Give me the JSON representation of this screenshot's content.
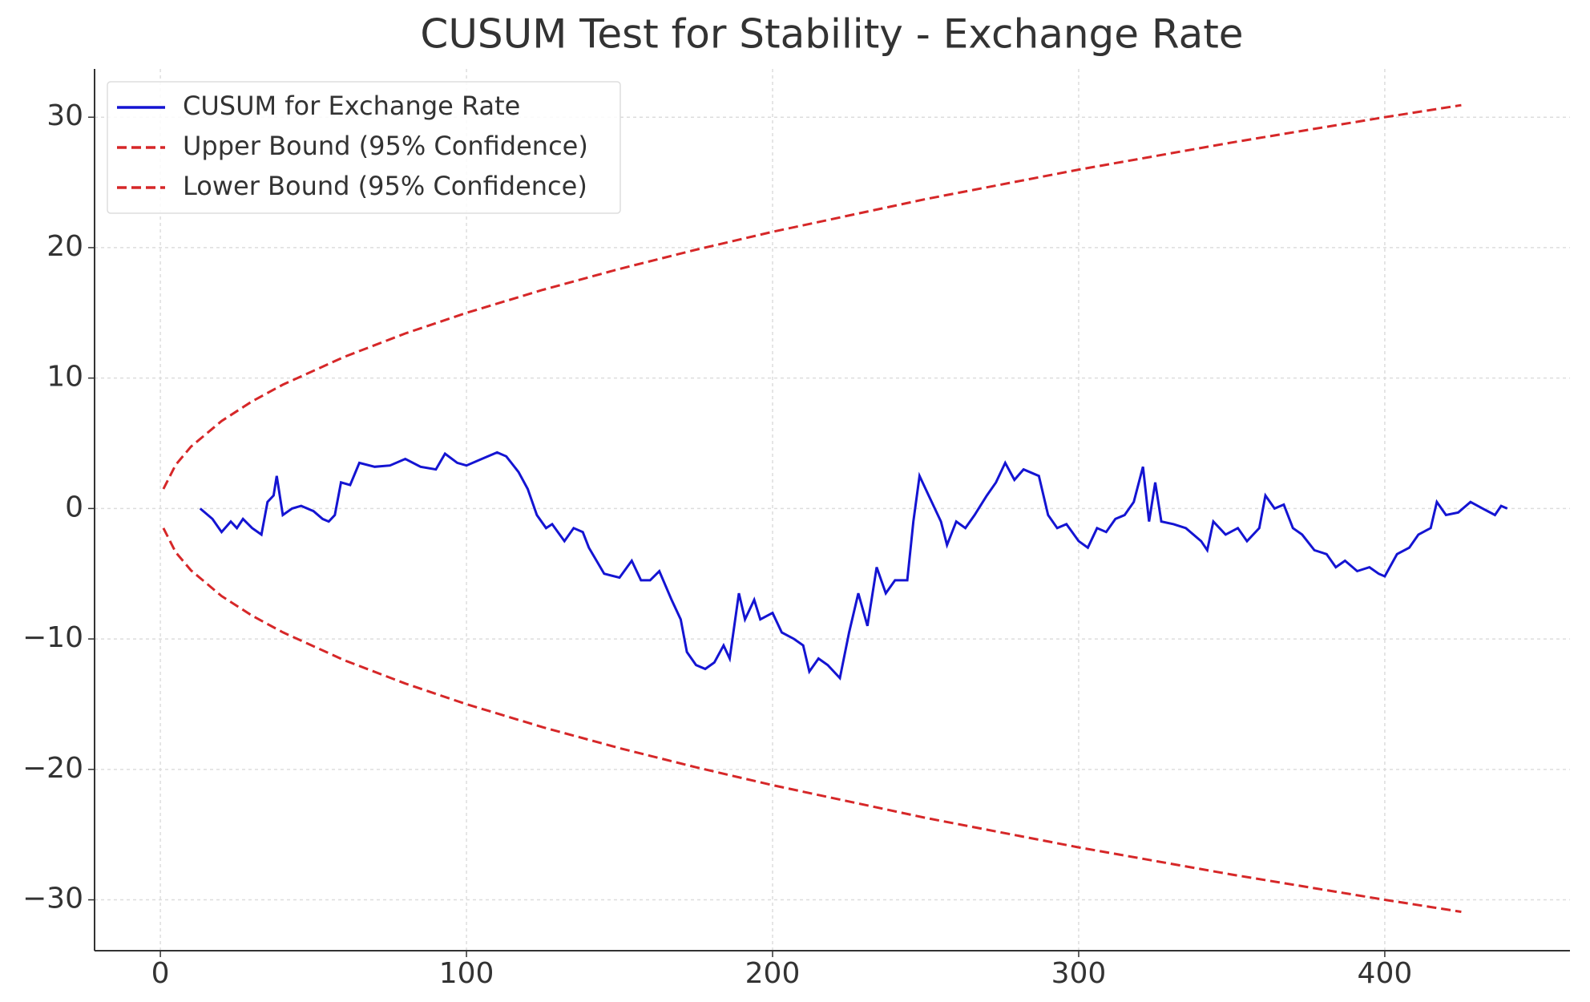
{
  "chart_data": {
    "type": "line",
    "title": "CUSUM Test for Stability - Exchange Rate",
    "xlim": [
      -21.5,
      460.5
    ],
    "ylim": [
      -33.9,
      33.7
    ],
    "xticks": [
      0,
      100,
      200,
      300,
      400
    ],
    "yticks": [
      {
        "value": -30,
        "label": "−30"
      },
      {
        "value": -20,
        "label": "−20"
      },
      {
        "value": -10,
        "label": "−10"
      },
      0,
      10,
      20,
      30
    ],
    "grid": true,
    "legend": "upper left",
    "series": [
      {
        "name": "CUSUM for Exchange Rate",
        "color": "#1414d2",
        "linestyle": "solid",
        "x": [
          13,
          17,
          20,
          23,
          25,
          27,
          30,
          33,
          35,
          37,
          38,
          40,
          43,
          46,
          50,
          53,
          55,
          57,
          59,
          62,
          65,
          70,
          75,
          80,
          85,
          90,
          93,
          97,
          100,
          105,
          110,
          113,
          117,
          120,
          123,
          126,
          128,
          132,
          135,
          138,
          140,
          145,
          150,
          154,
          157,
          160,
          163,
          167,
          170,
          172,
          175,
          178,
          181,
          184,
          186,
          189,
          191,
          194,
          196,
          200,
          203,
          207,
          210,
          212,
          215,
          218,
          222,
          225,
          228,
          231,
          234,
          237,
          240,
          244,
          246,
          248,
          251,
          255,
          257,
          260,
          263,
          266,
          270,
          273,
          276,
          279,
          282,
          287,
          290,
          293,
          296,
          300,
          303,
          306,
          309,
          312,
          315,
          318,
          321,
          323,
          325,
          327,
          331,
          335,
          340,
          342,
          344,
          348,
          352,
          355,
          359,
          361,
          364,
          367,
          370,
          373,
          377,
          381,
          384,
          387,
          391,
          395,
          398,
          400,
          404,
          408,
          411,
          415,
          417,
          420,
          424,
          428,
          432,
          436,
          438,
          440
        ],
        "values": [
          0,
          -0.8,
          -1.8,
          -1,
          -1.5,
          -0.8,
          -1.5,
          -2,
          0.5,
          1,
          2.5,
          -0.5,
          0,
          0.2,
          -0.2,
          -0.8,
          -1,
          -0.5,
          2,
          1.8,
          3.5,
          3.2,
          3.3,
          3.8,
          3.2,
          3.0,
          4.2,
          3.5,
          3.3,
          3.8,
          4.3,
          4.0,
          2.8,
          1.5,
          -0.5,
          -1.5,
          -1.2,
          -2.5,
          -1.5,
          -1.8,
          -3,
          -5,
          -5.3,
          -4,
          -5.5,
          -5.5,
          -4.8,
          -7,
          -8.5,
          -11,
          -12,
          -12.3,
          -11.8,
          -10.5,
          -11.5,
          -6.5,
          -8.5,
          -7,
          -8.5,
          -8,
          -9.5,
          -10,
          -10.5,
          -12.5,
          -11.5,
          -12,
          -13,
          -9.5,
          -6.5,
          -9,
          -4.5,
          -6.5,
          -5.5,
          -5.5,
          -1,
          2.5,
          1,
          -1,
          -2.8,
          -1,
          -1.5,
          -0.5,
          1,
          2,
          3.5,
          2.2,
          3.0,
          2.5,
          -0.5,
          -1.5,
          -1.2,
          -2.5,
          -3,
          -1.5,
          -1.8,
          -0.8,
          -0.5,
          0.5,
          3.2,
          -1,
          2,
          -1,
          -1.2,
          -1.5,
          -2.5,
          -3.2,
          -1,
          -2,
          -1.5,
          -2.5,
          -1.5,
          1,
          0,
          0.3,
          -1.5,
          -2,
          -3.2,
          -3.5,
          -4.5,
          -4,
          -4.8,
          -4.5,
          -5,
          -5.2,
          -3.5,
          -3,
          -2,
          -1.5,
          0.5,
          -0.5,
          -0.3,
          0.5,
          0,
          -0.5,
          0.2,
          0
        ]
      },
      {
        "name": "Upper Bound (95% Confidence)",
        "color": "#d62728",
        "linestyle": "dashed",
        "x": [
          1,
          5,
          10,
          20,
          30,
          40,
          60,
          80,
          100,
          125,
          150,
          175,
          200,
          250,
          300,
          350,
          400,
          425
        ],
        "values": [
          1.5,
          3.35,
          4.74,
          6.71,
          8.22,
          9.49,
          11.62,
          13.42,
          15,
          16.77,
          18.37,
          19.84,
          21.21,
          23.72,
          25.98,
          28.06,
          30,
          30.92
        ]
      },
      {
        "name": "Lower Bound (95% Confidence)",
        "color": "#d62728",
        "linestyle": "dashed",
        "x": [
          1,
          5,
          10,
          20,
          30,
          40,
          60,
          80,
          100,
          125,
          150,
          175,
          200,
          250,
          300,
          350,
          400,
          425
        ],
        "values": [
          -1.5,
          -3.35,
          -4.74,
          -6.71,
          -8.22,
          -9.49,
          -11.62,
          -13.42,
          -15,
          -16.77,
          -18.37,
          -19.84,
          -21.21,
          -23.72,
          -25.98,
          -28.06,
          -30,
          -30.92
        ]
      }
    ]
  }
}
